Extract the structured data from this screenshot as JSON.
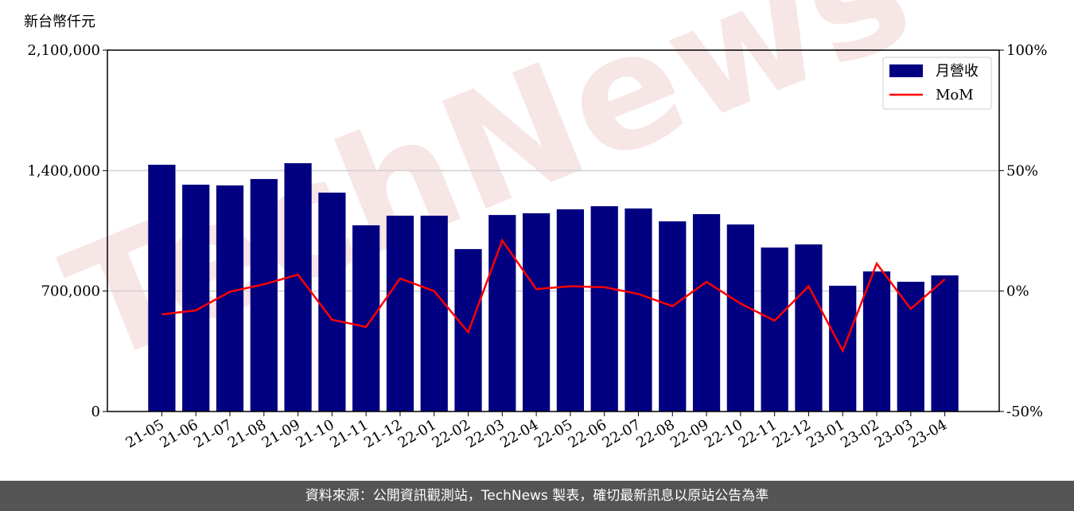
{
  "chart_data": {
    "type": "bar",
    "y_unit": "新台幣仟元",
    "watermark": "TechNews",
    "categories": [
      "21-05",
      "21-06",
      "21-07",
      "21-08",
      "21-09",
      "21-10",
      "21-11",
      "21-12",
      "22-01",
      "22-02",
      "22-03",
      "22-04",
      "22-05",
      "22-06",
      "22-07",
      "22-08",
      "22-09",
      "22-10",
      "22-11",
      "22-12",
      "23-01",
      "23-02",
      "23-03",
      "23-04"
    ],
    "series": [
      {
        "name": "月營收",
        "type": "bar",
        "color": "#000080",
        "values": [
          1434000,
          1318000,
          1314000,
          1351000,
          1443000,
          1272000,
          1082000,
          1138000,
          1138000,
          944000,
          1142000,
          1152000,
          1175000,
          1193000,
          1180000,
          1105000,
          1147000,
          1087000,
          953000,
          971000,
          731000,
          814000,
          754000,
          791000
        ]
      },
      {
        "name": "MoM",
        "type": "line",
        "color": "#ff0000",
        "axis": "y2",
        "values": [
          -9.7,
          -8.0,
          -0.3,
          2.8,
          6.8,
          -11.9,
          -14.9,
          5.2,
          0,
          -17.1,
          21.0,
          0.8,
          2.0,
          1.6,
          -1.2,
          -6.3,
          3.8,
          -5.2,
          -12.3,
          2.0,
          -24.8,
          11.4,
          -7.4,
          4.9
        ]
      }
    ],
    "ylim": [
      0,
      2100000
    ],
    "yticks": [
      0,
      {
        "value": 700000,
        "label": "700,000"
      },
      {
        "value": 1400000,
        "label": "1,400,000"
      },
      {
        "value": 2100000,
        "label": "2,100,000"
      }
    ],
    "y2lim": [
      -50,
      100
    ],
    "y2ticks": [
      {
        "value": -50,
        "label": "-50%"
      },
      {
        "value": 0,
        "label": "0%"
      },
      {
        "value": 50,
        "label": "50%"
      },
      {
        "value": 100,
        "label": "100%"
      }
    ],
    "grid": true,
    "legend": "upper right",
    "source": "資料來源：公開資訊觀測站，TechNews 製表，確切最新訊息以原站公告為準"
  }
}
